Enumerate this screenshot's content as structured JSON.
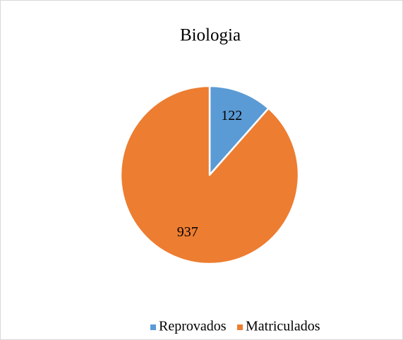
{
  "chart_data": {
    "type": "pie",
    "title": "Biologia",
    "categories": [
      "Reprovados",
      "Matriculados"
    ],
    "values": [
      122,
      937
    ],
    "colors": [
      "#5b9bd5",
      "#ed7d31"
    ],
    "legend": "bottom"
  }
}
